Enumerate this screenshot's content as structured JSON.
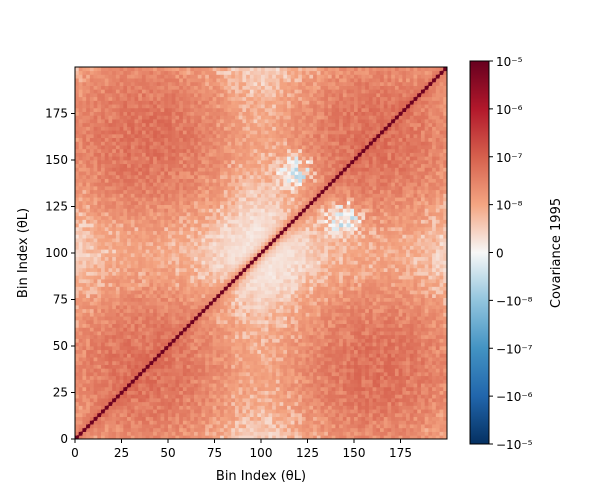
{
  "chart_data": {
    "type": "heatmap",
    "title": "",
    "xlabel": "Bin Index (θL)",
    "ylabel": "Bin Index (θL)",
    "xlim": [
      0,
      200
    ],
    "ylim": [
      0,
      200
    ],
    "x_ticks": [
      0,
      25,
      50,
      75,
      100,
      125,
      150,
      175
    ],
    "y_ticks": [
      0,
      25,
      50,
      75,
      100,
      125,
      150,
      175
    ],
    "n_bins": 200,
    "colorscale": "RdBu_r (symmetric log)",
    "colorbar": {
      "label": "Covariance 1995",
      "range": [
        -1e-05,
        1e-05
      ],
      "tick_labels": [
        "10⁻⁵",
        "10⁻⁶",
        "10⁻⁷",
        "10⁻⁸",
        "0",
        "−10⁻⁸",
        "−10⁻⁷",
        "−10⁻⁶",
        "−10⁻⁵"
      ]
    },
    "regions": [
      {
        "feature": "diagonal",
        "value": 8e-06
      },
      {
        "feature": "block",
        "x_range": [
          0,
          75
        ],
        "y_range": [
          125,
          200
        ],
        "value": 6e-08
      },
      {
        "feature": "block",
        "x_range": [
          125,
          200
        ],
        "y_range": [
          125,
          200
        ],
        "value": 6e-08
      },
      {
        "feature": "block",
        "x_range": [
          0,
          75
        ],
        "y_range": [
          0,
          75
        ],
        "value": 6e-08
      },
      {
        "feature": "block",
        "x_range": [
          125,
          200
        ],
        "y_range": [
          0,
          75
        ],
        "value": 6e-08
      },
      {
        "feature": "negative-lobe",
        "x_center": 120,
        "y_center": 145,
        "value": -2e-08
      },
      {
        "feature": "negative-lobe",
        "x_center": 145,
        "y_center": 120,
        "value": -2e-08
      }
    ]
  }
}
